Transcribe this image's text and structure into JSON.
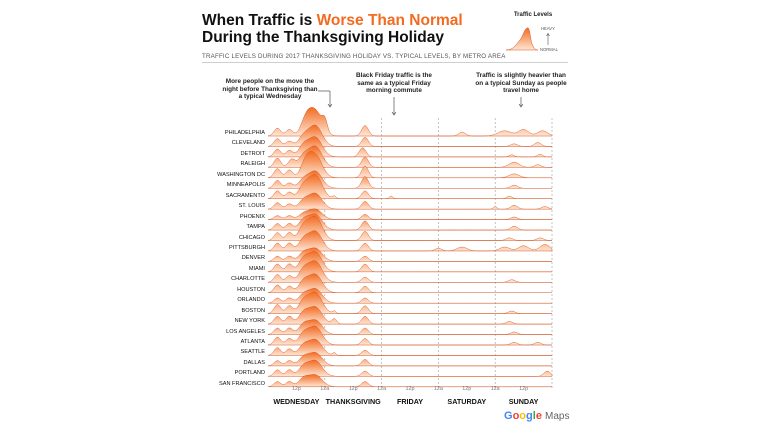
{
  "title": {
    "line1_prefix": "When Traffic is ",
    "line1_highlight": "Worse Than Normal",
    "line2": "During the Thanksgiving Holiday"
  },
  "subtitle": "TRAFFIC LEVELS DURING 2017 THANKSGIVING HOLIDAY VS. TYPICAL LEVELS, BY METRO AREA",
  "legend": {
    "title": "Traffic Levels",
    "heavy": "HEAVY",
    "normal": "NORMAL"
  },
  "annotations": {
    "wednesday": "More people on the move the night before Thanksgiving than a typical Wednesday",
    "friday": "Black Friday traffic is the same as a typical Friday morning commute",
    "sunday": "Traffic is slightly heavier than on a typical Sunday as people travel home"
  },
  "colors": {
    "accent": "#f26b21",
    "fill_top": "#f26b21",
    "fill_bottom": "#ffe6d5",
    "divider": "#9e9e9e"
  },
  "brand": {
    "google": "Google",
    "maps": "Maps"
  },
  "chart_data": {
    "type": "area",
    "description_days": [
      "WEDNESDAY",
      "THANKSGIVING",
      "FRIDAY",
      "SATURDAY",
      "SUNDAY"
    ],
    "x_ticks": [
      "12p",
      "12a",
      "12p",
      "12a",
      "12p",
      "12a",
      "12p",
      "12a",
      "12p"
    ],
    "x_unit": "hours since Wednesday 12a",
    "x_range": [
      0,
      120
    ],
    "y_unit": "traffic above typical level (0 = normal, 1 = heavy)",
    "y_range": [
      0,
      1
    ],
    "cities": [
      {
        "name": "PHILADELPHIA",
        "peaks": [
          [
            4,
            0.3,
            2
          ],
          [
            9,
            0.25,
            2
          ],
          [
            16,
            0.55,
            3
          ],
          [
            20,
            0.95,
            4
          ],
          [
            24,
            0.4,
            1.5
          ],
          [
            41,
            0.4,
            2
          ],
          [
            82,
            0.15,
            2
          ],
          [
            100,
            0.2,
            4
          ],
          [
            108,
            0.25,
            3
          ],
          [
            116,
            0.2,
            3
          ]
        ]
      },
      {
        "name": "CLEVELAND",
        "peaks": [
          [
            4,
            0.3,
            2
          ],
          [
            9,
            0.2,
            2
          ],
          [
            15,
            0.35,
            3
          ],
          [
            20,
            0.8,
            4
          ],
          [
            41,
            0.35,
            2
          ],
          [
            104,
            0.1,
            2
          ],
          [
            114,
            0.15,
            2
          ]
        ]
      },
      {
        "name": "DETROIT",
        "peaks": [
          [
            4,
            0.3,
            2
          ],
          [
            9,
            0.25,
            2
          ],
          [
            15,
            0.4,
            3
          ],
          [
            20,
            0.75,
            4
          ],
          [
            40,
            0.35,
            2
          ],
          [
            103,
            0.08,
            1.5
          ],
          [
            115,
            0.1,
            1.5
          ]
        ]
      },
      {
        "name": "RALEIGH",
        "peaks": [
          [
            4,
            0.35,
            2
          ],
          [
            10,
            0.3,
            2
          ],
          [
            15,
            0.4,
            3
          ],
          [
            20,
            0.8,
            4
          ],
          [
            41,
            0.4,
            2
          ],
          [
            104,
            0.2,
            3
          ],
          [
            114,
            0.1,
            2
          ]
        ]
      },
      {
        "name": "WASHINGTON DC",
        "peaks": [
          [
            4,
            0.35,
            2
          ],
          [
            9,
            0.3,
            2
          ],
          [
            16,
            0.55,
            3
          ],
          [
            20,
            0.85,
            4
          ],
          [
            41,
            0.45,
            2
          ],
          [
            104,
            0.15,
            3
          ]
        ]
      },
      {
        "name": "MINNEAPOLIS",
        "peaks": [
          [
            4,
            0.3,
            2
          ],
          [
            9,
            0.2,
            2
          ],
          [
            15,
            0.3,
            3
          ],
          [
            20,
            0.65,
            4
          ],
          [
            41,
            0.45,
            2
          ],
          [
            104,
            0.12,
            2
          ]
        ]
      },
      {
        "name": "SACRAMENTO",
        "peaks": [
          [
            4,
            0.3,
            2
          ],
          [
            9,
            0.25,
            2
          ],
          [
            15,
            0.45,
            3
          ],
          [
            20,
            0.9,
            4
          ],
          [
            28,
            0.1,
            1
          ],
          [
            41,
            0.3,
            2
          ],
          [
            52,
            0.1,
            1
          ],
          [
            102,
            0.1,
            1.5
          ]
        ]
      },
      {
        "name": "ST. LOUIS",
        "peaks": [
          [
            4,
            0.25,
            2
          ],
          [
            9,
            0.2,
            2
          ],
          [
            15,
            0.3,
            3
          ],
          [
            20,
            0.6,
            4
          ],
          [
            41,
            0.3,
            2
          ],
          [
            96,
            0.1,
            1
          ],
          [
            104,
            0.15,
            2
          ],
          [
            117,
            0.1,
            2
          ]
        ]
      },
      {
        "name": "PHOENIX",
        "peaks": [
          [
            4,
            0.15,
            2
          ],
          [
            9,
            0.15,
            2
          ],
          [
            15,
            0.2,
            3
          ],
          [
            20,
            0.4,
            4
          ],
          [
            41,
            0.2,
            2
          ],
          [
            104,
            0.1,
            2
          ]
        ]
      },
      {
        "name": "TAMPA",
        "peaks": [
          [
            4,
            0.25,
            2
          ],
          [
            9,
            0.25,
            2
          ],
          [
            15,
            0.35,
            3
          ],
          [
            20,
            0.6,
            4
          ],
          [
            41,
            0.35,
            2
          ],
          [
            104,
            0.15,
            2
          ]
        ]
      },
      {
        "name": "CHICAGO",
        "peaks": [
          [
            4,
            0.3,
            2
          ],
          [
            9,
            0.3,
            2
          ],
          [
            15,
            0.5,
            3
          ],
          [
            20,
            0.9,
            4
          ],
          [
            41,
            0.35,
            2
          ],
          [
            102,
            0.1,
            2
          ],
          [
            115,
            0.1,
            2
          ]
        ]
      },
      {
        "name": "PITTSBURGH",
        "peaks": [
          [
            4,
            0.3,
            2
          ],
          [
            9,
            0.3,
            2
          ],
          [
            15,
            0.4,
            3
          ],
          [
            20,
            0.75,
            4
          ],
          [
            41,
            0.3,
            2
          ],
          [
            72,
            0.1,
            2
          ],
          [
            82,
            0.15,
            3
          ],
          [
            100,
            0.15,
            3
          ],
          [
            108,
            0.2,
            3
          ],
          [
            117,
            0.25,
            3
          ]
        ]
      },
      {
        "name": "DENVER",
        "peaks": [
          [
            4,
            0.2,
            2
          ],
          [
            9,
            0.2,
            2
          ],
          [
            15,
            0.3,
            3
          ],
          [
            20,
            0.5,
            4
          ],
          [
            41,
            0.2,
            2
          ]
        ]
      },
      {
        "name": "MIAMI",
        "peaks": [
          [
            4,
            0.3,
            2
          ],
          [
            9,
            0.3,
            2
          ],
          [
            15,
            0.45,
            3
          ],
          [
            20,
            0.75,
            4
          ],
          [
            41,
            0.3,
            2
          ]
        ]
      },
      {
        "name": "CHARLOTTE",
        "peaks": [
          [
            4,
            0.3,
            2
          ],
          [
            9,
            0.25,
            2
          ],
          [
            15,
            0.45,
            3
          ],
          [
            20,
            0.8,
            4
          ],
          [
            41,
            0.2,
            2
          ],
          [
            103,
            0.1,
            2
          ]
        ]
      },
      {
        "name": "HOUSTON",
        "peaks": [
          [
            4,
            0.3,
            2
          ],
          [
            9,
            0.25,
            2
          ],
          [
            15,
            0.4,
            3
          ],
          [
            20,
            0.7,
            4
          ],
          [
            41,
            0.25,
            2
          ]
        ]
      },
      {
        "name": "ORLANDO",
        "peaks": [
          [
            4,
            0.2,
            2
          ],
          [
            9,
            0.2,
            2
          ],
          [
            15,
            0.3,
            3
          ],
          [
            20,
            0.55,
            4
          ],
          [
            41,
            0.2,
            2
          ]
        ]
      },
      {
        "name": "BOSTON",
        "peaks": [
          [
            4,
            0.35,
            2
          ],
          [
            9,
            0.3,
            2
          ],
          [
            15,
            0.45,
            3
          ],
          [
            20,
            0.8,
            4
          ],
          [
            28,
            0.1,
            1
          ],
          [
            41,
            0.3,
            2
          ],
          [
            103,
            0.1,
            2
          ]
        ]
      },
      {
        "name": "NEW YORK",
        "peaks": [
          [
            4,
            0.3,
            2
          ],
          [
            9,
            0.3,
            2
          ],
          [
            15,
            0.4,
            3
          ],
          [
            20,
            0.65,
            4
          ],
          [
            28,
            0.2,
            1.5
          ],
          [
            41,
            0.3,
            2
          ],
          [
            102,
            0.1,
            2
          ]
        ]
      },
      {
        "name": "LOS ANGELES",
        "peaks": [
          [
            4,
            0.25,
            2
          ],
          [
            9,
            0.25,
            2
          ],
          [
            15,
            0.35,
            3
          ],
          [
            20,
            0.55,
            4
          ],
          [
            41,
            0.25,
            2
          ],
          [
            104,
            0.1,
            2
          ]
        ]
      },
      {
        "name": "ATLANTA",
        "peaks": [
          [
            4,
            0.3,
            2
          ],
          [
            9,
            0.25,
            2
          ],
          [
            15,
            0.4,
            3
          ],
          [
            20,
            0.7,
            4
          ],
          [
            41,
            0.25,
            2
          ],
          [
            104,
            0.1,
            2
          ],
          [
            114,
            0.1,
            2
          ]
        ]
      },
      {
        "name": "SEATTLE",
        "peaks": [
          [
            4,
            0.3,
            2
          ],
          [
            9,
            0.25,
            2
          ],
          [
            15,
            0.35,
            3
          ],
          [
            20,
            0.6,
            4
          ],
          [
            28,
            0.1,
            1
          ],
          [
            41,
            0.2,
            2
          ]
        ]
      },
      {
        "name": "DALLAS",
        "peaks": [
          [
            4,
            0.2,
            2
          ],
          [
            9,
            0.2,
            2
          ],
          [
            15,
            0.3,
            3
          ],
          [
            20,
            0.5,
            4
          ],
          [
            41,
            0.25,
            2
          ]
        ]
      },
      {
        "name": "PORTLAND",
        "peaks": [
          [
            4,
            0.25,
            2
          ],
          [
            9,
            0.25,
            2
          ],
          [
            15,
            0.35,
            3
          ],
          [
            20,
            0.6,
            4
          ],
          [
            41,
            0.2,
            2
          ],
          [
            118,
            0.2,
            2
          ]
        ]
      },
      {
        "name": "SAN FRANCISCO",
        "peaks": [
          [
            4,
            0.2,
            2
          ],
          [
            9,
            0.2,
            2
          ],
          [
            15,
            0.3,
            3
          ],
          [
            20,
            0.45,
            4
          ],
          [
            41,
            0.2,
            2
          ]
        ]
      }
    ]
  }
}
